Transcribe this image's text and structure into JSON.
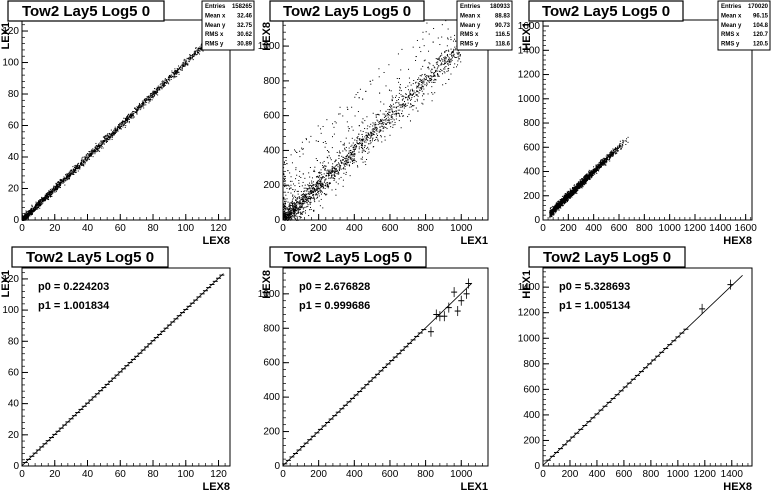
{
  "chart_data": [
    {
      "type": "scatter",
      "title": "Tow2 Lay5 Log5 0",
      "xlabel": "LEX8",
      "ylabel": "LEX1",
      "xlim": [
        0,
        127
      ],
      "ylim": [
        0,
        127
      ],
      "x_ticks": [
        0,
        20,
        40,
        60,
        80,
        100,
        120
      ],
      "y_ticks": [
        0,
        20,
        40,
        60,
        80,
        100,
        120
      ],
      "stats": [
        {
          "label": "Entries",
          "value": "158265"
        },
        {
          "label": "Mean x",
          "value": "32.46"
        },
        {
          "label": "Mean y",
          "value": "32.75"
        },
        {
          "label": "RMS x",
          "value": "30.62"
        },
        {
          "label": "RMS y",
          "value": "30.89"
        }
      ],
      "trend": {
        "intercept": 0.2242,
        "slope": 1.0018,
        "x_range": [
          0,
          122
        ]
      },
      "scatter_spread": 1.2
    },
    {
      "type": "scatter",
      "title": "Tow2 Lay5 Log5 0",
      "xlabel": "LEX1",
      "ylabel": "HEX8",
      "xlim": [
        0,
        1150
      ],
      "ylim": [
        0,
        1150
      ],
      "x_ticks": [
        0,
        200,
        400,
        600,
        800,
        1000
      ],
      "y_ticks": [
        0,
        200,
        400,
        600,
        800,
        1000
      ],
      "stats": [
        {
          "label": "Entries",
          "value": "180933"
        },
        {
          "label": "Mean x",
          "value": "88.83"
        },
        {
          "label": "Mean y",
          "value": "90.73"
        },
        {
          "label": "RMS x",
          "value": "116.5"
        },
        {
          "label": "RMS y",
          "value": "118.6"
        }
      ],
      "trend": {
        "intercept": 2.68,
        "slope": 1.0,
        "x_range": [
          0,
          1000
        ]
      },
      "scatter_spread": 60
    },
    {
      "type": "scatter",
      "title": "Tow2 Lay5 Log5 0",
      "xlabel": "HEX8",
      "ylabel": "HEX1",
      "xlim": [
        0,
        1650
      ],
      "ylim": [
        0,
        1650
      ],
      "x_ticks": [
        0,
        200,
        400,
        600,
        800,
        1000,
        1200,
        1400,
        1600
      ],
      "y_ticks": [
        0,
        200,
        400,
        600,
        800,
        1000,
        1200,
        1400,
        1600
      ],
      "stats": [
        {
          "label": "Entries",
          "value": "170020"
        },
        {
          "label": "Mean x",
          "value": "96.15"
        },
        {
          "label": "Mean y",
          "value": "104.8"
        },
        {
          "label": "RMS x",
          "value": "120.7"
        },
        {
          "label": "RMS y",
          "value": "120.5"
        }
      ],
      "trend": {
        "intercept": 5.33,
        "slope": 1.005,
        "x_range": [
          50,
          700
        ]
      },
      "scatter_spread": 15
    },
    {
      "type": "line",
      "title": "Tow2 Lay5 Log5 0",
      "xlabel": "LEX8",
      "ylabel": "LEX1",
      "xlim": [
        0,
        127
      ],
      "ylim": [
        0,
        127
      ],
      "x_ticks": [
        0,
        20,
        40,
        60,
        80,
        100,
        120
      ],
      "y_ticks": [
        0,
        20,
        40,
        60,
        80,
        100,
        120
      ],
      "fit": {
        "p0_label": "p0 = 0.224203",
        "p1_label": "p1 = 1.001834",
        "p0": 0.224203,
        "p1": 1.001834,
        "x_range": [
          0,
          123
        ]
      },
      "profile_points_x_range": [
        2,
        122
      ],
      "profile_step": 2
    },
    {
      "type": "line",
      "title": "Tow2 Lay5 Log5 0",
      "xlabel": "LEX1",
      "ylabel": "HEX8",
      "xlim": [
        0,
        1150
      ],
      "ylim": [
        0,
        1150
      ],
      "x_ticks": [
        0,
        200,
        400,
        600,
        800,
        1000
      ],
      "y_ticks": [
        0,
        200,
        400,
        600,
        800,
        1000
      ],
      "fit": {
        "p0_label": "p0 = 2.676828",
        "p1_label": "p1 = 0.999686",
        "p0": 2.676828,
        "p1": 0.999686,
        "x_range": [
          0,
          1060
        ]
      },
      "profile_points_x_range": [
        10,
        800
      ],
      "profile_step": 20,
      "outliers": [
        [
          830,
          780
        ],
        [
          860,
          880
        ],
        [
          880,
          870
        ],
        [
          905,
          870
        ],
        [
          930,
          920
        ],
        [
          960,
          1010
        ],
        [
          980,
          900
        ],
        [
          1000,
          960
        ],
        [
          1030,
          1000
        ],
        [
          1040,
          1060
        ]
      ]
    },
    {
      "type": "line",
      "title": "Tow2 Lay5 Log5 0",
      "xlabel": "HEX8",
      "ylabel": "HEX1",
      "xlim": [
        0,
        1550
      ],
      "ylim": [
        0,
        1550
      ],
      "x_ticks": [
        0,
        200,
        400,
        600,
        800,
        1000,
        1200,
        1400
      ],
      "y_ticks": [
        0,
        200,
        400,
        600,
        800,
        1000,
        1200,
        1400
      ],
      "fit": {
        "p0_label": "p0 = 5.328693",
        "p1_label": "p1 = 1.005134",
        "p0": 5.328693,
        "p1": 1.005134,
        "x_range": [
          0,
          1480
        ]
      },
      "profile_points_x_range": [
        40,
        1080
      ],
      "profile_step": 30,
      "outliers": [
        [
          1180,
          1230
        ],
        [
          1390,
          1420
        ]
      ]
    }
  ]
}
